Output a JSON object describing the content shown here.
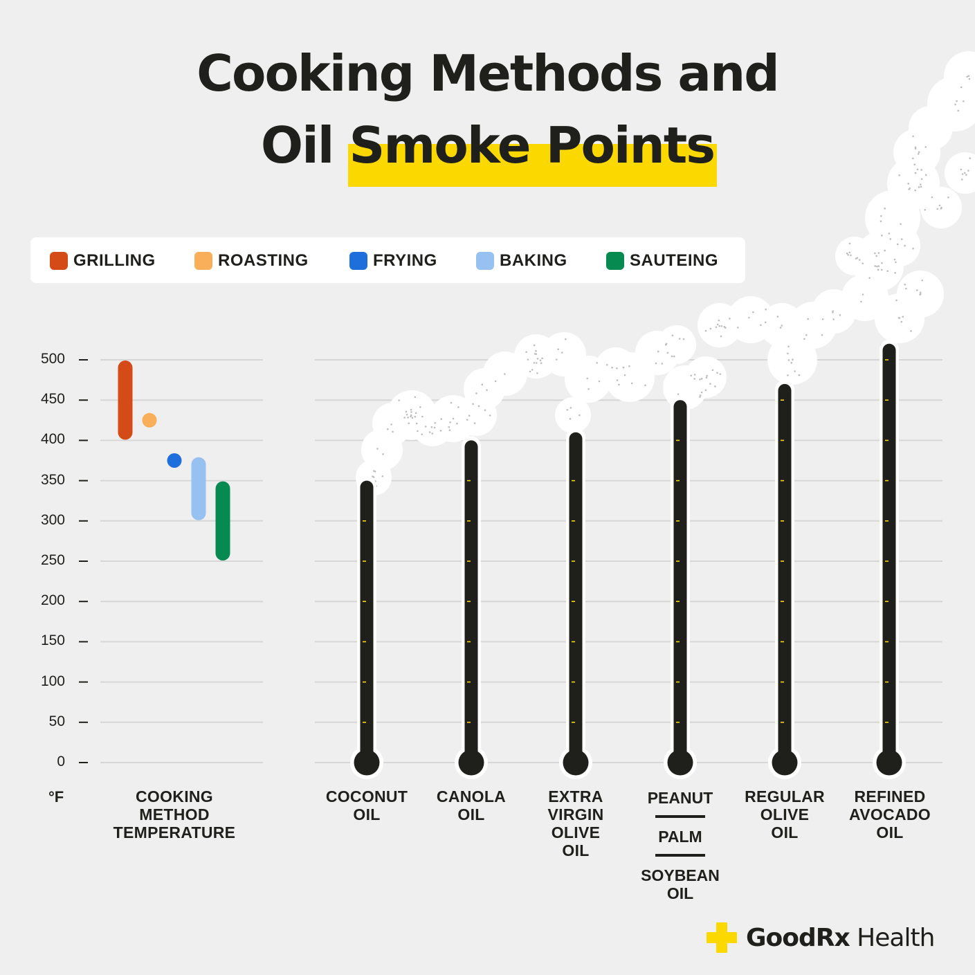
{
  "title": {
    "line1": "Cooking Methods and",
    "line2_plain": "Oil ",
    "line2_highlight": "Smoke Points"
  },
  "colors": {
    "background": "#efefef",
    "highlight": "#fbd800",
    "thermometer": "#1f1f1c",
    "tick": "#fbd800"
  },
  "legend": [
    {
      "label": "GRILLING",
      "color": "#d44b18"
    },
    {
      "label": "ROASTING",
      "color": "#f9ae5a"
    },
    {
      "label": "FRYING",
      "color": "#1e6fdc"
    },
    {
      "label": "BAKING",
      "color": "#97c1f0"
    },
    {
      "label": "SAUTEING",
      "color": "#068a50"
    }
  ],
  "y_axis": {
    "unit": "°F",
    "ticks": [
      "500",
      "450",
      "400",
      "350",
      "300",
      "250",
      "200",
      "150",
      "100",
      "50",
      "0"
    ]
  },
  "chart_data": {
    "type": "bar",
    "y_unit": "°F",
    "ylim": [
      0,
      500
    ],
    "cooking_methods": {
      "label": "COOKING\nMETHOD\nTEMPERATURE",
      "ranges": [
        {
          "name": "GRILLING",
          "low": 400,
          "high": 500
        },
        {
          "name": "ROASTING",
          "low": 425,
          "high": 425
        },
        {
          "name": "FRYING",
          "low": 375,
          "high": 375
        },
        {
          "name": "BAKING",
          "low": 300,
          "high": 380
        },
        {
          "name": "SAUTEING",
          "low": 250,
          "high": 350
        }
      ]
    },
    "categories": [
      "COCONUT\nOIL",
      "CANOLA\nOIL",
      "EXTRA\nVIRGIN\nOLIVE\nOIL",
      "PEANUT / PALM / SOYBEAN OIL",
      "REGULAR\nOLIVE\nOIL",
      "REFINED\nAVOCADO\nOIL"
    ],
    "values": [
      350,
      400,
      410,
      450,
      470,
      520
    ]
  },
  "stacked_label": {
    "names": [
      "PEANUT",
      "PALM",
      "SOYBEAN\nOIL"
    ]
  },
  "brand": {
    "bold": "GoodRx",
    "light": " Health",
    "logo_color": "#fbd800"
  }
}
